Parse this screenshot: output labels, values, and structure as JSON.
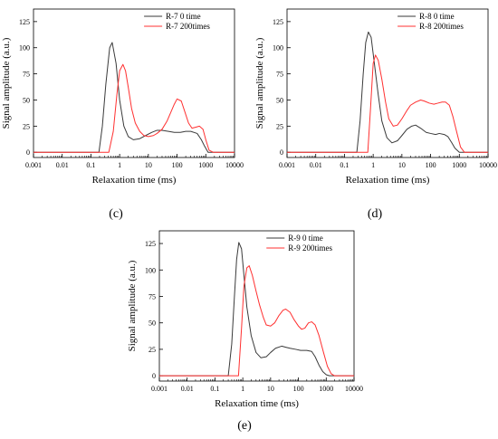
{
  "colors": {
    "series_0": "#3a3a3a",
    "series_1": "#ff3030",
    "axis": "#000000"
  },
  "chart_data": [
    {
      "type": "line",
      "panel_label": "(c)",
      "xlabel": "Relaxation time  (ms)",
      "ylabel": "Signal amplitude (a.u.)",
      "x_scale": "log",
      "xlim": [
        0.001,
        10000
      ],
      "ylim": [
        -5,
        137
      ],
      "x_ticks": [
        0.001,
        0.01,
        0.1,
        1,
        10,
        100,
        1000,
        10000
      ],
      "x_tick_labels": [
        "0.001",
        "0.01",
        "0.1",
        "1",
        "10",
        "100",
        "1000",
        "10000"
      ],
      "y_ticks": [
        0,
        25,
        50,
        75,
        100,
        125
      ],
      "y_tick_labels": [
        "0",
        "25",
        "50",
        "75",
        "100",
        "125"
      ],
      "legend_position": "top-right",
      "grid": false,
      "series": [
        {
          "name": "R-7 0 time",
          "color": "#3a3a3a",
          "x": [
            0.001,
            0.19,
            0.25,
            0.33,
            0.45,
            0.55,
            0.75,
            1.0,
            1.4,
            2.0,
            3.0,
            5.0,
            8.0,
            13,
            20,
            30,
            50,
            80,
            130,
            200,
            300,
            500,
            700,
            900,
            1200,
            1500,
            10000
          ],
          "y": [
            0,
            0,
            25,
            65,
            100,
            105,
            85,
            50,
            25,
            15,
            12,
            13,
            16,
            19,
            21,
            21,
            20,
            19,
            19,
            20,
            20,
            18,
            12,
            6,
            0,
            0,
            0
          ]
        },
        {
          "name": "R-7 200times",
          "color": "#ff3030",
          "x": [
            0.001,
            0.42,
            0.6,
            0.8,
            1.0,
            1.3,
            1.6,
            2.0,
            2.6,
            3.5,
            5.0,
            7.0,
            10,
            15,
            20,
            30,
            45,
            60,
            80,
            100,
            140,
            180,
            250,
            330,
            450,
            600,
            800,
            1000,
            1300,
            1800,
            10000
          ],
          "y": [
            0,
            0,
            20,
            55,
            78,
            84,
            78,
            62,
            42,
            28,
            20,
            16,
            15,
            16,
            18,
            22,
            30,
            38,
            46,
            51,
            49,
            40,
            28,
            23,
            24,
            25,
            22,
            12,
            2,
            0,
            0
          ]
        }
      ]
    },
    {
      "type": "line",
      "panel_label": "(d)",
      "xlabel": "Relaxation time  (ms)",
      "ylabel": "Signal amplitude (a.u.)",
      "x_scale": "log",
      "xlim": [
        0.001,
        10000
      ],
      "ylim": [
        -5,
        137
      ],
      "x_ticks": [
        0.001,
        0.01,
        0.1,
        1,
        10,
        100,
        1000,
        10000
      ],
      "x_tick_labels": [
        "0.001",
        "0.01",
        "0.1",
        "1",
        "10",
        "100",
        "1000",
        "10000"
      ],
      "y_ticks": [
        0,
        25,
        50,
        75,
        100,
        125
      ],
      "y_tick_labels": [
        "0",
        "25",
        "50",
        "75",
        "100",
        "125"
      ],
      "legend_position": "top-right",
      "grid": false,
      "series": [
        {
          "name": "R-8 0 time",
          "color": "#3a3a3a",
          "x": [
            0.001,
            0.27,
            0.35,
            0.45,
            0.55,
            0.68,
            0.85,
            1.1,
            1.5,
            2.0,
            3.0,
            4.5,
            7.0,
            10,
            15,
            22,
            30,
            45,
            70,
            100,
            150,
            200,
            300,
            400,
            550,
            700,
            1000,
            10000
          ],
          "y": [
            0,
            0,
            30,
            75,
            105,
            115,
            110,
            85,
            55,
            30,
            14,
            9,
            11,
            16,
            22,
            25,
            26,
            23,
            19,
            18,
            17,
            18,
            17,
            15,
            9,
            4,
            0,
            0
          ]
        },
        {
          "name": "R-8 200times",
          "color": "#ff3030",
          "x": [
            0.001,
            0.65,
            0.8,
            1.0,
            1.2,
            1.5,
            2.0,
            2.7,
            3.5,
            5.0,
            7.0,
            10,
            15,
            20,
            30,
            45,
            60,
            90,
            130,
            180,
            250,
            330,
            450,
            600,
            800,
            1100,
            1500,
            10000
          ],
          "y": [
            0,
            0,
            40,
            85,
            93,
            88,
            70,
            48,
            32,
            25,
            26,
            32,
            40,
            45,
            48,
            50,
            49,
            47,
            46,
            47,
            48,
            48,
            45,
            34,
            20,
            5,
            0,
            0
          ]
        }
      ]
    },
    {
      "type": "line",
      "panel_label": "(e)",
      "xlabel": "Relaxation time  (ms)",
      "ylabel": "Signal amplitude (a.u.)",
      "x_scale": "log",
      "xlim": [
        0.001,
        10000
      ],
      "ylim": [
        -5,
        137
      ],
      "x_ticks": [
        0.001,
        0.01,
        0.1,
        1,
        10,
        100,
        1000,
        10000
      ],
      "x_tick_labels": [
        "0.001",
        "0.01",
        "0.1",
        "1",
        "10",
        "100",
        "1000",
        "10000"
      ],
      "y_ticks": [
        0,
        25,
        50,
        75,
        100,
        125
      ],
      "y_tick_labels": [
        "0",
        "25",
        "50",
        "75",
        "100",
        "125"
      ],
      "legend_position": "top-right",
      "grid": false,
      "series": [
        {
          "name": "R-9 0 time",
          "color": "#3a3a3a",
          "x": [
            0.001,
            0.3,
            0.4,
            0.5,
            0.6,
            0.72,
            0.9,
            1.1,
            1.4,
            2.0,
            3.0,
            4.5,
            7.0,
            10,
            15,
            25,
            35,
            50,
            80,
            120,
            200,
            300,
            400,
            550,
            750,
            1000,
            1300,
            10000
          ],
          "y": [
            0,
            0,
            30,
            75,
            110,
            126,
            120,
            95,
            65,
            38,
            22,
            17,
            18,
            22,
            26,
            28,
            27,
            26,
            25,
            24,
            24,
            23,
            18,
            10,
            4,
            1,
            0,
            0
          ]
        },
        {
          "name": "R-9 200times",
          "color": "#ff3030",
          "x": [
            0.001,
            0.7,
            0.9,
            1.1,
            1.4,
            1.7,
            2.2,
            3.0,
            4.0,
            5.5,
            7.0,
            10,
            14,
            20,
            28,
            35,
            50,
            70,
            100,
            130,
            170,
            230,
            300,
            400,
            550,
            800,
            1100,
            1500,
            2000,
            10000
          ],
          "y": [
            0,
            0,
            45,
            85,
            102,
            104,
            95,
            80,
            67,
            55,
            48,
            47,
            50,
            57,
            62,
            63,
            60,
            53,
            47,
            44,
            45,
            50,
            51,
            48,
            38,
            22,
            9,
            2,
            0,
            0
          ]
        }
      ]
    }
  ]
}
